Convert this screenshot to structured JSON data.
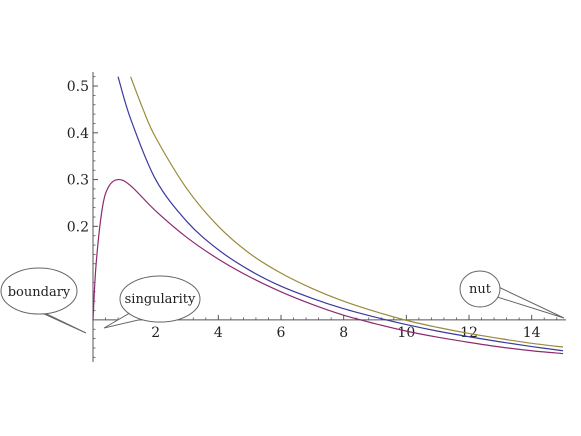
{
  "chart_data": {
    "type": "line",
    "xlim": [
      0,
      15
    ],
    "ylim": [
      -0.09,
      0.53
    ],
    "x_ticks": [
      2,
      4,
      6,
      8,
      10,
      12,
      14
    ],
    "x_tick_labels": [
      "2",
      "4",
      "6",
      "8",
      "10",
      "12",
      "14"
    ],
    "y_ticks": [
      0.2,
      0.3,
      0.4,
      0.5
    ],
    "y_tick_labels": [
      "0.2",
      "0.3",
      "0.4",
      "0.5"
    ],
    "grid": false,
    "series": [
      {
        "color": "#8b2a6e",
        "x": [
          0.1,
          0.3,
          0.5,
          0.8,
          1.2,
          2,
          3,
          4,
          5,
          6,
          7,
          8,
          9,
          10,
          11,
          12,
          13,
          14,
          15
        ],
        "y": [
          0.12,
          0.24,
          0.285,
          0.3,
          0.287,
          0.233,
          0.176,
          0.13,
          0.092,
          0.06,
          0.033,
          0.01,
          -0.008,
          -0.024,
          -0.037,
          -0.048,
          -0.058,
          -0.066,
          -0.072
        ]
      },
      {
        "color": "#3a3aa0",
        "x": [
          0.8,
          1.2,
          2,
          3,
          4,
          5,
          6,
          7,
          8,
          9,
          10,
          11,
          12,
          13,
          14,
          15
        ],
        "y": [
          0.52,
          0.43,
          0.3,
          0.21,
          0.15,
          0.106,
          0.072,
          0.046,
          0.024,
          0.006,
          -0.01,
          -0.024,
          -0.036,
          -0.047,
          -0.057,
          -0.066
        ]
      },
      {
        "color": "#9a8a3a",
        "x": [
          1.2,
          1.6,
          2,
          3,
          4,
          5,
          6,
          7,
          8,
          9,
          10,
          11,
          12,
          13,
          14,
          15
        ],
        "y": [
          0.52,
          0.45,
          0.39,
          0.28,
          0.2,
          0.142,
          0.1,
          0.067,
          0.04,
          0.018,
          -0.001,
          -0.016,
          -0.029,
          -0.04,
          -0.05,
          -0.058
        ]
      }
    ],
    "annotations": [
      {
        "text": "boundary",
        "point": [
          0.05,
          0.0
        ]
      },
      {
        "text": "singularity",
        "point": [
          0.4,
          0.01
        ]
      },
      {
        "text": "nut",
        "point": [
          15.1,
          0.028
        ]
      }
    ]
  }
}
